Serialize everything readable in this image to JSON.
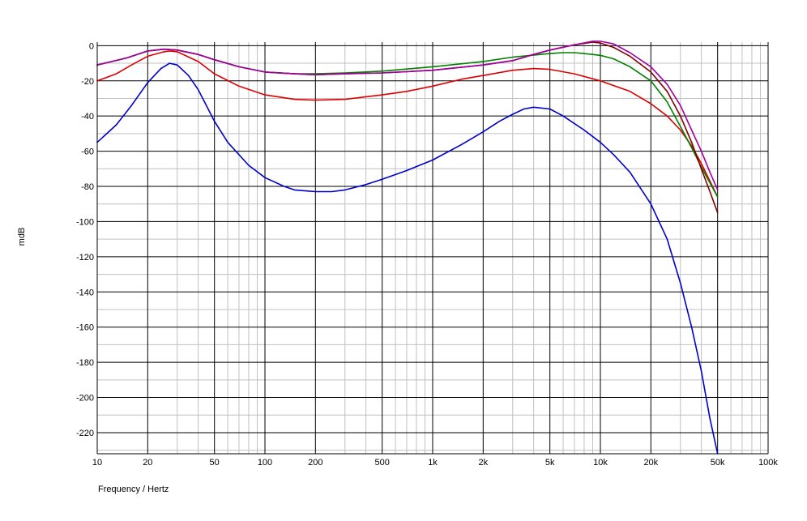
{
  "chart_data": {
    "type": "line",
    "title": "",
    "xlabel": "Frequency / Hertz",
    "ylabel": "mdB",
    "xscale": "log",
    "xlim": [
      10,
      100000
    ],
    "ylim": [
      -232,
      2
    ],
    "grid": true,
    "x_tick_labels": [
      {
        "value": 10,
        "label": "10"
      },
      {
        "value": 20,
        "label": "20"
      },
      {
        "value": 50,
        "label": "50"
      },
      {
        "value": 100,
        "label": "100"
      },
      {
        "value": 200,
        "label": "200"
      },
      {
        "value": 500,
        "label": "500"
      },
      {
        "value": 1000,
        "label": "1k"
      },
      {
        "value": 2000,
        "label": "2k"
      },
      {
        "value": 5000,
        "label": "5k"
      },
      {
        "value": 10000,
        "label": "10k"
      },
      {
        "value": 20000,
        "label": "20k"
      },
      {
        "value": 50000,
        "label": "50k"
      },
      {
        "value": 100000,
        "label": "100k"
      }
    ],
    "y_ticks": [
      0,
      -20,
      -40,
      -60,
      -80,
      -100,
      -120,
      -140,
      -160,
      -180,
      -200,
      -220
    ],
    "series": [
      {
        "color": "#0000cc",
        "x": [
          10,
          13,
          16,
          20,
          24,
          27,
          30,
          35,
          40,
          50,
          60,
          80,
          100,
          130,
          150,
          200,
          250,
          300,
          400,
          500,
          700,
          1000,
          1500,
          2000,
          2500,
          3000,
          3500,
          4000,
          5000,
          6000,
          8000,
          10000,
          12000,
          15000,
          20000,
          25000,
          30000,
          35000,
          40000,
          45000,
          50000
        ],
        "y": [
          -55,
          -45,
          -34,
          -21,
          -13,
          -10,
          -11,
          -17,
          -25,
          -43,
          -55,
          -68,
          -75,
          -80,
          -82,
          -83,
          -83,
          -82,
          -79,
          -76,
          -71,
          -65,
          -56,
          -49,
          -43,
          -39,
          -36,
          -35,
          -36,
          -40,
          -48,
          -55,
          -62,
          -72,
          -90,
          -110,
          -135,
          -160,
          -185,
          -212,
          -233
        ]
      },
      {
        "color": "#dd0000",
        "x": [
          10,
          13,
          16,
          20,
          25,
          27,
          30,
          40,
          50,
          70,
          100,
          150,
          200,
          300,
          500,
          700,
          1000,
          1500,
          2000,
          3000,
          4000,
          5000,
          7000,
          10000,
          15000,
          20000,
          25000,
          30000,
          35000,
          40000,
          45000,
          50000
        ],
        "y": [
          -20,
          -16,
          -11,
          -6,
          -3.5,
          -3,
          -3.5,
          -9,
          -16,
          -23,
          -28,
          -30.5,
          -31,
          -30.5,
          -28,
          -26,
          -23,
          -19,
          -17,
          -14,
          -13,
          -13.5,
          -16,
          -20,
          -26,
          -33,
          -40,
          -48,
          -57,
          -67,
          -77,
          -86
        ]
      },
      {
        "color": "#008000",
        "x": [
          10,
          15,
          20,
          25,
          30,
          40,
          50,
          70,
          100,
          150,
          200,
          300,
          500,
          1000,
          2000,
          3000,
          5000,
          6000,
          7000,
          8000,
          10000,
          12000,
          15000,
          20000,
          25000,
          30000,
          35000,
          40000,
          45000,
          50000
        ],
        "y": [
          -11,
          -7,
          -3,
          -2,
          -2.5,
          -5,
          -8,
          -12,
          -15,
          -16,
          -16,
          -15.5,
          -14.5,
          -12,
          -9,
          -6.5,
          -4.5,
          -4,
          -4,
          -4.5,
          -5.5,
          -7.5,
          -12,
          -20,
          -32,
          -46,
          -58,
          -69,
          -78,
          -86
        ]
      },
      {
        "color": "#800000",
        "x": [
          10,
          15,
          20,
          25,
          30,
          40,
          50,
          70,
          100,
          150,
          200,
          300,
          500,
          1000,
          2000,
          3000,
          4000,
          5000,
          7000,
          9000,
          10000,
          12000,
          15000,
          20000,
          25000,
          30000,
          35000,
          40000,
          45000,
          50000
        ],
        "y": [
          -11,
          -7,
          -3,
          -2,
          -2.5,
          -5,
          -8,
          -12,
          -15,
          -16,
          -16.5,
          -16,
          -15.5,
          -14,
          -11,
          -8.5,
          -5,
          -2.5,
          0.5,
          2,
          1.5,
          -1,
          -6,
          -15,
          -26,
          -40,
          -55,
          -70,
          -83,
          -95
        ]
      },
      {
        "color": "#a000a0",
        "x": [
          10,
          15,
          20,
          25,
          30,
          40,
          50,
          70,
          100,
          150,
          200,
          300,
          500,
          1000,
          2000,
          3000,
          4000,
          5000,
          7000,
          9000,
          10000,
          12000,
          15000,
          20000,
          25000,
          30000,
          35000,
          40000,
          45000,
          50000
        ],
        "y": [
          -11,
          -7,
          -3,
          -2,
          -2.5,
          -5,
          -8,
          -12,
          -15,
          -16,
          -16.5,
          -16,
          -15.5,
          -14,
          -11,
          -8.5,
          -5,
          -2.5,
          0.5,
          2.5,
          2.5,
          1,
          -4,
          -12,
          -22,
          -34,
          -48,
          -60,
          -72,
          -82
        ]
      }
    ]
  }
}
